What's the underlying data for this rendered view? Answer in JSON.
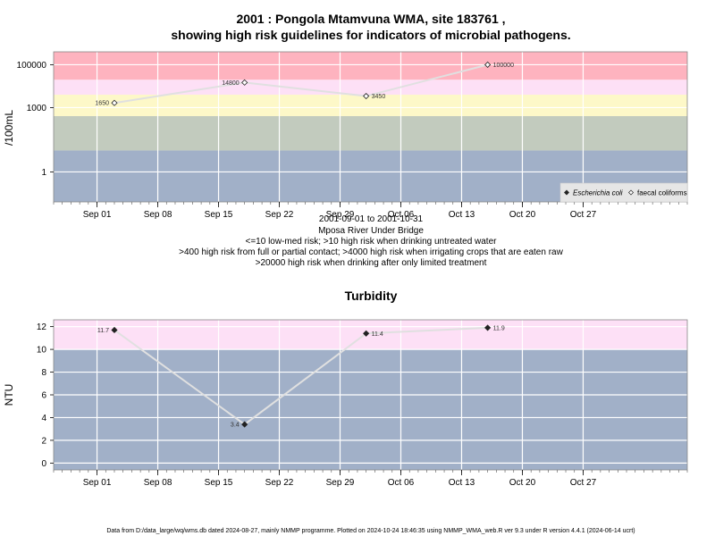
{
  "chart_data": [
    {
      "type": "line",
      "title": "2001 : Pongola Mtamvuna WMA, site 183761 ,",
      "title_line2": "showing high risk guidelines for indicators of microbial pathogens.",
      "ylabel": "/100mL",
      "ylim": [
        0.04,
        400000
      ],
      "yscale": "log",
      "yticks": [
        1,
        1000,
        100000
      ],
      "ytick_labels": [
        "1",
        "1000",
        "100000"
      ],
      "xlim": [
        "2001-08-27",
        "2001-11-08"
      ],
      "xticks": [
        "2001-09-01",
        "2001-09-08",
        "2001-09-15",
        "2001-09-22",
        "2001-09-29",
        "2001-10-06",
        "2001-10-13",
        "2001-10-20",
        "2001-10-27"
      ],
      "xtick_labels": [
        "Sep 01",
        "Sep 08",
        "Sep 15",
        "Sep 22",
        "Sep 29",
        "Oct 06",
        "Oct 13",
        "Oct 20",
        "Oct 27"
      ],
      "risk_bands": [
        {
          "from": 0.04,
          "to": 10,
          "color": "#a1b0c8"
        },
        {
          "from": 10,
          "to": 400,
          "color": "#c2cbbe"
        },
        {
          "from": 400,
          "to": 4000,
          "color": "#fdf8c8"
        },
        {
          "from": 4000,
          "to": 20000,
          "color": "#fde0f6"
        },
        {
          "from": 20000,
          "to": 400000,
          "color": "#feb3bf"
        }
      ],
      "series": [
        {
          "name": "faecal coliforms",
          "marker": "open-diamond",
          "x": [
            "2001-09-03",
            "2001-09-18",
            "2001-10-02",
            "2001-10-16"
          ],
          "y": [
            1650,
            14800,
            3450,
            100000
          ],
          "labels": [
            "1650",
            "14800",
            "3450",
            "100000"
          ]
        }
      ],
      "legend": {
        "position": "bottom-right",
        "entries": [
          {
            "label": "Escherichia coli",
            "marker": "filled-diamond",
            "italic": true
          },
          {
            "label": "faecal coliforms",
            "marker": "open-diamond",
            "italic": false
          }
        ]
      },
      "subtitle_lines": [
        "2001-09-01 to 2001-10-31",
        "Mposa River Under Bridge",
        "<=10 low-med risk; >10 high risk when drinking untreated water",
        ">400 high risk from full or partial contact; >4000 high risk when irrigating crops that are eaten raw",
        ">20000 high risk when drinking after only limited treatment"
      ],
      "grid": true
    },
    {
      "type": "line",
      "title": "Turbidity",
      "ylabel": "NTU",
      "ylim": [
        -0.6,
        12.6
      ],
      "yticks": [
        0,
        2,
        4,
        6,
        8,
        10,
        12
      ],
      "ytick_labels": [
        "0",
        "2",
        "4",
        "6",
        "8",
        "10",
        "12"
      ],
      "xlim": [
        "2001-08-27",
        "2001-11-08"
      ],
      "xticks": [
        "2001-09-01",
        "2001-09-08",
        "2001-09-15",
        "2001-09-22",
        "2001-09-29",
        "2001-10-06",
        "2001-10-13",
        "2001-10-20",
        "2001-10-27"
      ],
      "xtick_labels": [
        "Sep 01",
        "Sep 08",
        "Sep 15",
        "Sep 22",
        "Sep 29",
        "Oct 06",
        "Oct 13",
        "Oct 20",
        "Oct 27"
      ],
      "risk_bands": [
        {
          "from": -0.6,
          "to": 10,
          "color": "#a1b0c8"
        },
        {
          "from": 10,
          "to": 12.6,
          "color": "#fde0f6"
        }
      ],
      "series": [
        {
          "marker": "filled-diamond",
          "x": [
            "2001-09-03",
            "2001-09-18",
            "2001-10-02",
            "2001-10-16"
          ],
          "y": [
            11.7,
            3.4,
            11.4,
            11.9
          ],
          "labels": [
            "11.7",
            "3.4",
            "11.4",
            "11.9"
          ]
        }
      ],
      "grid": true
    }
  ],
  "footer": "Data from D:/data_large/wq/wms.db dated 2024-08-27, mainly NMMP programme. Plotted on 2024-10-24 18:46:35 using NMMP_WMA_web.R ver 9.3 under R version 4.4.1 (2024-06-14 ucrt)"
}
